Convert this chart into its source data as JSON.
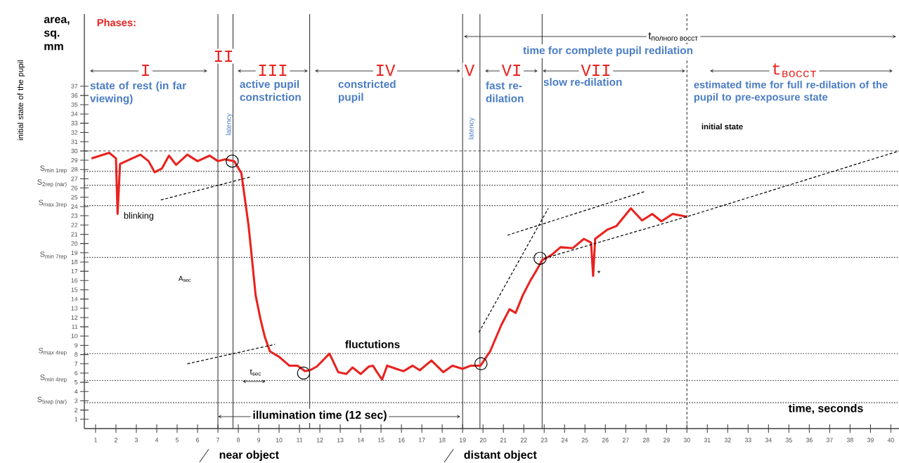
{
  "chart_data": {
    "type": "line",
    "title": "Phases:",
    "xlabel": "time, seconds",
    "ylabel": "area, sq. mm",
    "xlim": [
      0.45,
      40.4
    ],
    "ylim": [
      0,
      44.8
    ],
    "xticks": [
      1,
      2,
      3,
      4,
      5,
      6,
      7,
      8,
      9,
      10,
      11,
      12,
      13,
      14,
      15,
      16,
      17,
      18,
      19,
      20,
      21,
      22,
      23,
      24,
      25,
      26,
      27,
      28,
      29,
      30,
      31,
      32,
      33,
      34,
      35,
      36,
      37,
      38,
      39,
      40
    ],
    "yticks": [
      1,
      2,
      3,
      4,
      5,
      6,
      7,
      8,
      9,
      10,
      11,
      12,
      13,
      14,
      15,
      16,
      17,
      18,
      19,
      20,
      21,
      22,
      23,
      24,
      25,
      26,
      27,
      28,
      29,
      30,
      31,
      32,
      33,
      34,
      35,
      36,
      37
    ],
    "series": [
      {
        "color": "#e8231f",
        "x": [
          0.8,
          1.67,
          2.0,
          2.08,
          2.2,
          2.8,
          3.2,
          3.6,
          3.9,
          4.25,
          4.6,
          4.95,
          5.5,
          6.0,
          6.6,
          7.0,
          7.35,
          7.8,
          8.15,
          8.5,
          8.64,
          8.85,
          9.08,
          9.3,
          9.55,
          10.0,
          10.5,
          10.9,
          11.27,
          11.5,
          11.85,
          12.47,
          12.9,
          13.3,
          13.6,
          14.0,
          14.4,
          14.6,
          14.8,
          15.05,
          15.3,
          15.75,
          16.1,
          16.55,
          16.9,
          17.47,
          18.05,
          18.5,
          19.0,
          19.4,
          19.88,
          20.35,
          20.9,
          21.3,
          21.6,
          21.95,
          22.3,
          22.65,
          22.9,
          23.35,
          23.8,
          24.4,
          24.95,
          25.3,
          25.4,
          25.5,
          26.1,
          26.55,
          27.25,
          27.8,
          28.3,
          28.75,
          29.3,
          30.0
        ],
        "values": [
          29.2,
          29.8,
          29.2,
          23.2,
          28.6,
          29.2,
          29.6,
          28.9,
          27.7,
          28.1,
          29.5,
          28.5,
          29.6,
          28.9,
          29.5,
          28.9,
          29.1,
          28.9,
          27.6,
          22,
          19,
          14.4,
          11.9,
          9.9,
          8.35,
          7.75,
          6.8,
          6.8,
          6.2,
          6.3,
          6.7,
          8.1,
          6.1,
          5.9,
          6.6,
          5.9,
          6.7,
          6.8,
          6.1,
          5.3,
          6.8,
          6.45,
          6.2,
          6.8,
          6.3,
          7.35,
          6.1,
          6.8,
          6.45,
          6.8,
          6.8,
          8.35,
          11.2,
          12.9,
          12.5,
          14.4,
          15.9,
          17.2,
          18.2,
          18.75,
          19.6,
          19.5,
          20.5,
          20.1,
          16.5,
          20.5,
          21.5,
          21.9,
          23.8,
          22.5,
          23.2,
          22.4,
          23.2,
          22.9
        ]
      },
      {
        "type": "scatter",
        "marker": "circle",
        "color": "#000000",
        "x": [
          7.7,
          11.2,
          19.9,
          22.8
        ],
        "values": [
          28.9,
          6.0,
          7.0,
          18.4
        ]
      },
      {
        "type": "line",
        "line_style": "dashed",
        "color": "#000000",
        "x": [
          23,
          30,
          40.4
        ],
        "values": [
          18.4,
          22.9,
          30
        ]
      },
      {
        "type": "line",
        "line_style": "dashed",
        "color": "#000000",
        "x": [
          4.2,
          8.6
        ],
        "values": [
          24.7,
          27.2
        ]
      },
      {
        "type": "line",
        "line_style": "dashed",
        "color": "#000000",
        "x": [
          5.5,
          9.8
        ],
        "values": [
          7,
          9.1
        ]
      },
      {
        "type": "line",
        "line_style": "dashed",
        "color": "#000000",
        "x": [
          19.8,
          23.2
        ],
        "values": [
          10.4,
          23.8
        ]
      },
      {
        "type": "line",
        "line_style": "dashed",
        "color": "#000000",
        "x": [
          21.2,
          27.9
        ],
        "values": [
          20.9,
          25.6
        ]
      }
    ],
    "ref_lines": [
      {
        "axis": "y",
        "value": 30,
        "line_style": "dashed"
      },
      {
        "axis": "y",
        "value": 27.8,
        "line_style": "dotted",
        "label": "\\text{S}_{\\text{min 1rep}}"
      },
      {
        "axis": "y",
        "value": 26.3,
        "line_style": "dotted",
        "label": "\\text{S}_{\\text{2rep (nar)}}"
      },
      {
        "axis": "y",
        "value": 24.1,
        "line_style": "dotted",
        "label": "\\text{S}_{\\text{max 3rep}}"
      },
      {
        "axis": "y",
        "value": 18.5,
        "line_style": "dotted",
        "label": "\\text{S}_{\\text{min 7rep}}"
      },
      {
        "axis": "y",
        "value": 8.1,
        "line_style": "dotted",
        "label": "\\text{S}_{\\text{max 4rep}}"
      },
      {
        "axis": "y",
        "value": 5.2,
        "line_style": "dotted",
        "label": "\\text{S}_{\\text{min 4rep}}"
      },
      {
        "axis": "y",
        "value": 2.8,
        "line_style": "dotted",
        "label": "\\text{S}_{\\text{5rep (nar)}}"
      },
      {
        "axis": "x",
        "value": 7,
        "line_style": "solid",
        "label": "near object"
      },
      {
        "axis": "x",
        "value": 7.74,
        "line_style": "solid"
      },
      {
        "axis": "x",
        "value": 11.5,
        "line_style": "solid"
      },
      {
        "axis": "x",
        "value": 19,
        "line_style": "solid",
        "label": "distant object"
      },
      {
        "axis": "x",
        "value": 19.85,
        "line_style": "solid"
      },
      {
        "axis": "x",
        "value": 22.9,
        "line_style": "solid"
      },
      {
        "axis": "x",
        "value": 30,
        "line_style": "dashed"
      }
    ],
    "annotations": [
      "I",
      "II",
      "III",
      "IV",
      "V",
      "VI",
      "VII",
      "t$_{восст}$",
      "\\text{t}_{\\text{полного восст}}",
      "illumination time (12 sec)",
      {
        "text": "t$_{sec}$",
        "x": 8.85,
        "y": 5.1
      },
      "state of rest (in far viewing)",
      "active pupil constriction",
      "constricted pupil",
      "fast re-dilation",
      "slow re-dilation",
      "time for complete pupil redilation",
      "estimated time for full re-dilation of the pupil to pre-exposure state",
      "initial state",
      "latency",
      "latency",
      "blinking",
      "A$_{sec}$",
      "fluctutions",
      "*",
      "initial state of the pupil"
    ]
  }
}
